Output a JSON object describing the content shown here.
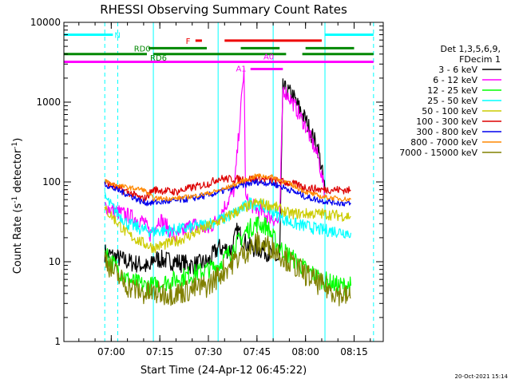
{
  "chart_data": {
    "type": "line",
    "title": "RHESSI Observing Summary Count Rates",
    "xlabel": "Start Time (24-Apr-12 06:45:22)",
    "ylabel_main": "Count Rate (s",
    "ylabel_sup": "-1",
    "ylabel_mid": " detector",
    "ylabel_end": ")",
    "yscale": "log",
    "ylim": [
      1,
      10000
    ],
    "xlim": [
      "06:45:22",
      "08:24:00"
    ],
    "xticks": [
      "07:00",
      "07:15",
      "07:30",
      "07:45",
      "08:00",
      "08:15"
    ],
    "yticks": [
      "1",
      "10",
      "100",
      "1000",
      "10000"
    ],
    "timestamp": "20-Oct-2021 15:14",
    "legend": {
      "placement": "right",
      "header1": "Det 1,3,5,6,9,",
      "header2": "FDecim 1",
      "entries": [
        {
          "label": "3 - 6 keV",
          "color": "#000000"
        },
        {
          "label": "6 - 12 keV",
          "color": "#ff00ff"
        },
        {
          "label": "12 - 25 keV",
          "color": "#00ff00"
        },
        {
          "label": "25 - 50 keV",
          "color": "#00ffff"
        },
        {
          "label": "50 - 100 keV",
          "color": "#cccc00"
        },
        {
          "label": "100 - 300 keV",
          "color": "#dd0000"
        },
        {
          "label": "300 - 800 keV",
          "color": "#0000ee"
        },
        {
          "label": "800 - 7000 keV",
          "color": "#ff8800"
        },
        {
          "label": "7000 - 15000 keV",
          "color": "#808000"
        }
      ]
    },
    "flag_bars": [
      {
        "label": "N",
        "color": "#00ffff",
        "y": 7000,
        "segments": [
          [
            "06:45:22",
            "07:00:30"
          ],
          [
            "08:06:00",
            "08:21:00"
          ]
        ]
      },
      {
        "label": "F",
        "color": "#ee0000",
        "y": 5900,
        "segments": [
          [
            "07:26:00",
            "07:28:00"
          ],
          [
            "07:35:00",
            "08:05:00"
          ]
        ]
      },
      {
        "label": "RD0",
        "color": "#008800",
        "y": 4750,
        "segments": [
          [
            "07:11:30",
            "07:29:30"
          ],
          [
            "07:40:00",
            "07:52:00"
          ],
          [
            "08:00:00",
            "08:15:00"
          ]
        ]
      },
      {
        "label": "RD6",
        "color": "#008800",
        "y": 4000,
        "segments": [
          [
            "06:45:22",
            "07:11:00"
          ],
          [
            "07:13:00",
            "07:54:00"
          ],
          [
            "07:59:00",
            "08:21:00"
          ]
        ]
      },
      {
        "label": "A0",
        "color": "#ff00ff",
        "y": 3200,
        "segments": [
          [
            "06:45:22",
            "08:21:00"
          ]
        ]
      },
      {
        "label": "A1",
        "color": "#ff00ff",
        "y": 2600,
        "segments": [
          [
            "07:43:00",
            "07:53:00"
          ]
        ]
      }
    ],
    "vlines": [
      {
        "color": "#00ffff",
        "style": "solid",
        "x": "06:45:22"
      },
      {
        "color": "#00ffff",
        "style": "dashed",
        "x": "06:58:00"
      },
      {
        "color": "#00ffff",
        "style": "dashed",
        "x": "07:02:00"
      },
      {
        "color": "#00ffff",
        "style": "solid",
        "x": "07:13:00"
      },
      {
        "color": "#00ffff",
        "style": "solid",
        "x": "07:33:00"
      },
      {
        "color": "#00ffff",
        "style": "solid",
        "x": "07:50:00"
      },
      {
        "color": "#00ffff",
        "style": "solid",
        "x": "08:06:00"
      },
      {
        "color": "#00ffff",
        "style": "dashed",
        "x": "08:21:00"
      }
    ],
    "series": [
      {
        "name": "3 - 6 keV",
        "color": "#000000",
        "noise": 0.12,
        "points": [
          [
            "06:58:00",
            13
          ],
          [
            "07:00:00",
            12
          ],
          [
            "07:05:00",
            10
          ],
          [
            "07:10:00",
            9
          ],
          [
            "07:12:00",
            8
          ],
          [
            "07:13:00",
            11
          ],
          [
            "07:20:00",
            10
          ],
          [
            "07:25:00",
            9
          ],
          [
            "07:30:00",
            10
          ],
          [
            "07:33:00",
            15
          ],
          [
            "07:37:00",
            14
          ],
          [
            "07:39:00",
            25
          ],
          [
            "07:41:00",
            18
          ],
          [
            "07:43:00",
            15
          ],
          [
            "07:47:00",
            14
          ],
          [
            "07:50:00",
            12
          ],
          [
            "07:52:00",
            10
          ],
          [
            "07:53:00",
            1500
          ],
          [
            "07:56:00",
            1200
          ],
          [
            "08:00:00",
            600
          ],
          [
            "08:04:00",
            250
          ],
          [
            "08:06:00",
            80
          ]
        ]
      },
      {
        "name": "6 - 12 keV",
        "color": "#ff00ff",
        "noise": 0.1,
        "points": [
          [
            "06:58:00",
            50
          ],
          [
            "07:00:00",
            45
          ],
          [
            "07:05:00",
            38
          ],
          [
            "07:10:00",
            32
          ],
          [
            "07:12:00",
            22
          ],
          [
            "07:15:00",
            35
          ],
          [
            "07:20:00",
            20
          ],
          [
            "07:25:00",
            30
          ],
          [
            "07:30:00",
            25
          ],
          [
            "07:33:00",
            35
          ],
          [
            "07:38:00",
            80
          ],
          [
            "07:41:00",
            2600
          ],
          [
            "07:41:30",
            60
          ],
          [
            "07:45:00",
            45
          ],
          [
            "07:50:00",
            35
          ],
          [
            "07:52:00",
            30
          ],
          [
            "07:53:00",
            1500
          ],
          [
            "07:56:00",
            1000
          ],
          [
            "08:00:00",
            500
          ],
          [
            "08:04:00",
            200
          ],
          [
            "08:06:00",
            70
          ]
        ]
      },
      {
        "name": "12 - 25 keV",
        "color": "#00ff00",
        "noise": 0.12,
        "points": [
          [
            "06:58:00",
            14
          ],
          [
            "07:00:00",
            10
          ],
          [
            "07:05:00",
            6
          ],
          [
            "07:10:00",
            5
          ],
          [
            "07:13:00",
            5
          ],
          [
            "07:20:00",
            6
          ],
          [
            "07:25:00",
            7
          ],
          [
            "07:30:00",
            8
          ],
          [
            "07:33:00",
            9
          ],
          [
            "07:38:00",
            15
          ],
          [
            "07:42:00",
            25
          ],
          [
            "07:45:00",
            30
          ],
          [
            "07:48:00",
            28
          ],
          [
            "07:50:00",
            20
          ],
          [
            "07:52:00",
            15
          ],
          [
            "07:55:00",
            12
          ],
          [
            "08:00:00",
            8
          ],
          [
            "08:05:00",
            6
          ],
          [
            "08:10:00",
            5
          ],
          [
            "08:14:00",
            5
          ]
        ]
      },
      {
        "name": "25 - 50 keV",
        "color": "#00ffff",
        "noise": 0.08,
        "points": [
          [
            "06:58:00",
            65
          ],
          [
            "07:00:00",
            50
          ],
          [
            "07:05:00",
            30
          ],
          [
            "07:10:00",
            25
          ],
          [
            "07:13:00",
            24
          ],
          [
            "07:20:00",
            25
          ],
          [
            "07:25:00",
            27
          ],
          [
            "07:30:00",
            30
          ],
          [
            "07:35:00",
            35
          ],
          [
            "07:40:00",
            45
          ],
          [
            "07:43:00",
            55
          ],
          [
            "07:47:00",
            50
          ],
          [
            "07:50:00",
            42
          ],
          [
            "07:53:00",
            35
          ],
          [
            "07:56:00",
            30
          ],
          [
            "08:00:00",
            28
          ],
          [
            "08:05:00",
            25
          ],
          [
            "08:10:00",
            24
          ],
          [
            "08:14:00",
            23
          ]
        ]
      },
      {
        "name": "50 - 100 keV",
        "color": "#cccc00",
        "noise": 0.07,
        "points": [
          [
            "06:58:00",
            45
          ],
          [
            "07:00:00",
            38
          ],
          [
            "07:05:00",
            22
          ],
          [
            "07:10:00",
            17
          ],
          [
            "07:13:00",
            15
          ],
          [
            "07:20:00",
            18
          ],
          [
            "07:25:00",
            22
          ],
          [
            "07:30:00",
            28
          ],
          [
            "07:35:00",
            35
          ],
          [
            "07:40:00",
            45
          ],
          [
            "07:45:00",
            55
          ],
          [
            "07:50:00",
            50
          ],
          [
            "07:55:00",
            40
          ],
          [
            "08:00:00",
            40
          ],
          [
            "08:05:00",
            40
          ],
          [
            "08:10:00",
            38
          ],
          [
            "08:14:00",
            37
          ]
        ]
      },
      {
        "name": "100 - 300 keV",
        "color": "#dd0000",
        "noise": 0.05,
        "points": [
          [
            "06:58:00",
            100
          ],
          [
            "07:00:00",
            90
          ],
          [
            "07:05:00",
            75
          ],
          [
            "07:10:00",
            60
          ],
          [
            "07:13:00",
            80
          ],
          [
            "07:20:00",
            75
          ],
          [
            "07:25:00",
            85
          ],
          [
            "07:30:00",
            95
          ],
          [
            "07:33:00",
            110
          ],
          [
            "07:40:00",
            108
          ],
          [
            "07:45:00",
            110
          ],
          [
            "07:50:00",
            105
          ],
          [
            "07:53:00",
            100
          ],
          [
            "07:56:00",
            95
          ],
          [
            "08:00:00",
            85
          ],
          [
            "08:05:00",
            80
          ],
          [
            "08:10:00",
            80
          ],
          [
            "08:14:00",
            78
          ]
        ]
      },
      {
        "name": "300 - 800 keV",
        "color": "#0000ee",
        "noise": 0.04,
        "points": [
          [
            "06:58:00",
            95
          ],
          [
            "07:00:00",
            85
          ],
          [
            "07:05:00",
            70
          ],
          [
            "07:10:00",
            55
          ],
          [
            "07:13:00",
            55
          ],
          [
            "07:20:00",
            58
          ],
          [
            "07:25:00",
            62
          ],
          [
            "07:30:00",
            68
          ],
          [
            "07:35:00",
            78
          ],
          [
            "07:40:00",
            90
          ],
          [
            "07:45:00",
            100
          ],
          [
            "07:50:00",
            95
          ],
          [
            "07:55:00",
            80
          ],
          [
            "08:00:00",
            65
          ],
          [
            "08:05:00",
            58
          ],
          [
            "08:10:00",
            55
          ],
          [
            "08:14:00",
            53
          ]
        ]
      },
      {
        "name": "800 - 7000 keV",
        "color": "#ff8800",
        "noise": 0.03,
        "points": [
          [
            "06:58:00",
            105
          ],
          [
            "07:00:00",
            95
          ],
          [
            "07:05:00",
            85
          ],
          [
            "07:10:00",
            80
          ],
          [
            "07:13:00",
            62
          ],
          [
            "07:20:00",
            62
          ],
          [
            "07:25:00",
            66
          ],
          [
            "07:30:00",
            72
          ],
          [
            "07:35:00",
            82
          ],
          [
            "07:40:00",
            100
          ],
          [
            "07:45:00",
            120
          ],
          [
            "07:50:00",
            115
          ],
          [
            "07:55:00",
            95
          ],
          [
            "08:00:00",
            75
          ],
          [
            "08:05:00",
            65
          ],
          [
            "08:10:00",
            62
          ],
          [
            "08:14:00",
            60
          ]
        ]
      },
      {
        "name": "7000 - 15000 keV",
        "color": "#808000",
        "noise": 0.15,
        "points": [
          [
            "06:58:00",
            12
          ],
          [
            "07:00:00",
            8
          ],
          [
            "07:05:00",
            5
          ],
          [
            "07:10:00",
            4
          ],
          [
            "07:13:00",
            4
          ],
          [
            "07:20:00",
            4
          ],
          [
            "07:25:00",
            4.5
          ],
          [
            "07:30:00",
            5
          ],
          [
            "07:35:00",
            8
          ],
          [
            "07:40:00",
            12
          ],
          [
            "07:45:00",
            17
          ],
          [
            "07:50:00",
            15
          ],
          [
            "07:55:00",
            10
          ],
          [
            "08:00:00",
            7
          ],
          [
            "08:05:00",
            5
          ],
          [
            "08:10:00",
            4
          ],
          [
            "08:14:00",
            3.5
          ]
        ]
      }
    ]
  }
}
